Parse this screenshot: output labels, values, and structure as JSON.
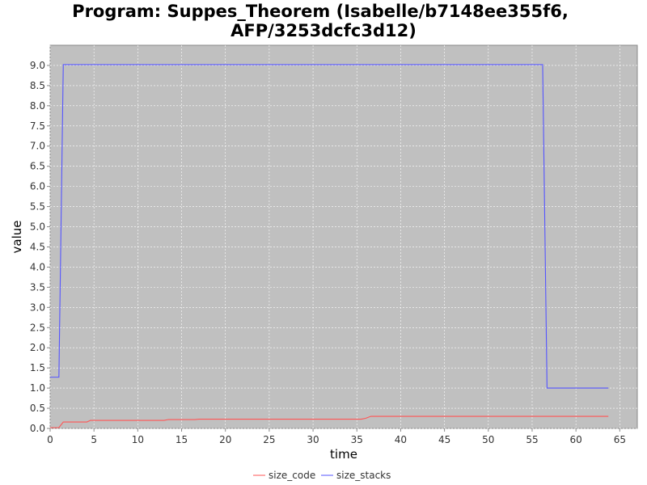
{
  "chart_data": {
    "type": "line",
    "title_lines": [
      "Program: Suppes_Theorem (Isabelle/b7148ee355f6,",
      "AFP/3253dcfc3d12)"
    ],
    "xlabel": "time",
    "ylabel": "value",
    "xlim": [
      0,
      67
    ],
    "ylim": [
      0,
      9.5
    ],
    "xticks": [
      0,
      5,
      10,
      15,
      20,
      25,
      30,
      35,
      40,
      45,
      50,
      55,
      60,
      65
    ],
    "yticks": [
      0.0,
      0.5,
      1.0,
      1.5,
      2.0,
      2.5,
      3.0,
      3.5,
      4.0,
      4.5,
      5.0,
      5.5,
      6.0,
      6.5,
      7.0,
      7.5,
      8.0,
      8.5,
      9.0
    ],
    "grid": true,
    "legend_position": "bottom-center",
    "background_color": "#c0c0c0",
    "series": [
      {
        "name": "size_code",
        "color": "#ff5555",
        "points": [
          [
            0,
            0.02
          ],
          [
            1.0,
            0.02
          ],
          [
            1.5,
            0.16
          ],
          [
            4.2,
            0.16
          ],
          [
            4.6,
            0.2
          ],
          [
            13.0,
            0.2
          ],
          [
            13.5,
            0.22
          ],
          [
            16.5,
            0.22
          ],
          [
            17.0,
            0.23
          ],
          [
            35.5,
            0.23
          ],
          [
            36.0,
            0.25
          ],
          [
            36.6,
            0.3
          ],
          [
            63.7,
            0.3
          ]
        ]
      },
      {
        "name": "size_stacks",
        "color": "#5555ff",
        "points": [
          [
            0,
            1.27
          ],
          [
            1.0,
            1.27
          ],
          [
            1.5,
            9.02
          ],
          [
            56.0,
            9.02
          ],
          [
            56.2,
            9.02
          ],
          [
            56.7,
            1.0
          ],
          [
            63.7,
            1.0
          ]
        ]
      }
    ]
  }
}
